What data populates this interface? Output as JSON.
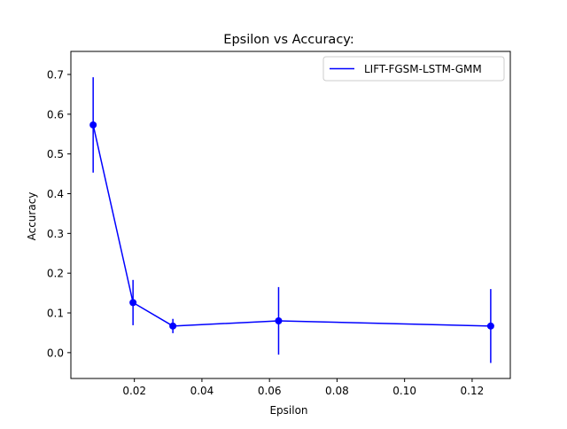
{
  "chart_data": {
    "type": "line",
    "title": "Epsilon vs Accuracy:",
    "xlabel": "Epsilon",
    "ylabel": "Accuracy",
    "xlim": [
      0.0012,
      0.1313
    ],
    "ylim": [
      -0.065,
      0.758
    ],
    "x_ticks": [
      0.02,
      0.04,
      0.06,
      0.08,
      0.1,
      0.12
    ],
    "x_tick_labels": [
      "0.02",
      "0.04",
      "0.06",
      "0.08",
      "0.10",
      "0.12"
    ],
    "y_ticks": [
      0.0,
      0.1,
      0.2,
      0.3,
      0.4,
      0.5,
      0.6,
      0.7
    ],
    "y_tick_labels": [
      "0.0",
      "0.1",
      "0.2",
      "0.3",
      "0.4",
      "0.5",
      "0.6",
      "0.7"
    ],
    "grid": false,
    "legend_position": "top-right",
    "series": [
      {
        "name": "LIFT-FGSM-LSTM-GMM",
        "color": "#0000ff",
        "marker": "circle",
        "x": [
          0.0078,
          0.0196,
          0.0314,
          0.0627,
          0.1255
        ],
        "y": [
          0.573,
          0.126,
          0.067,
          0.08,
          0.067
        ],
        "error": [
          0.12,
          0.057,
          0.018,
          0.085,
          0.093
        ]
      }
    ]
  }
}
